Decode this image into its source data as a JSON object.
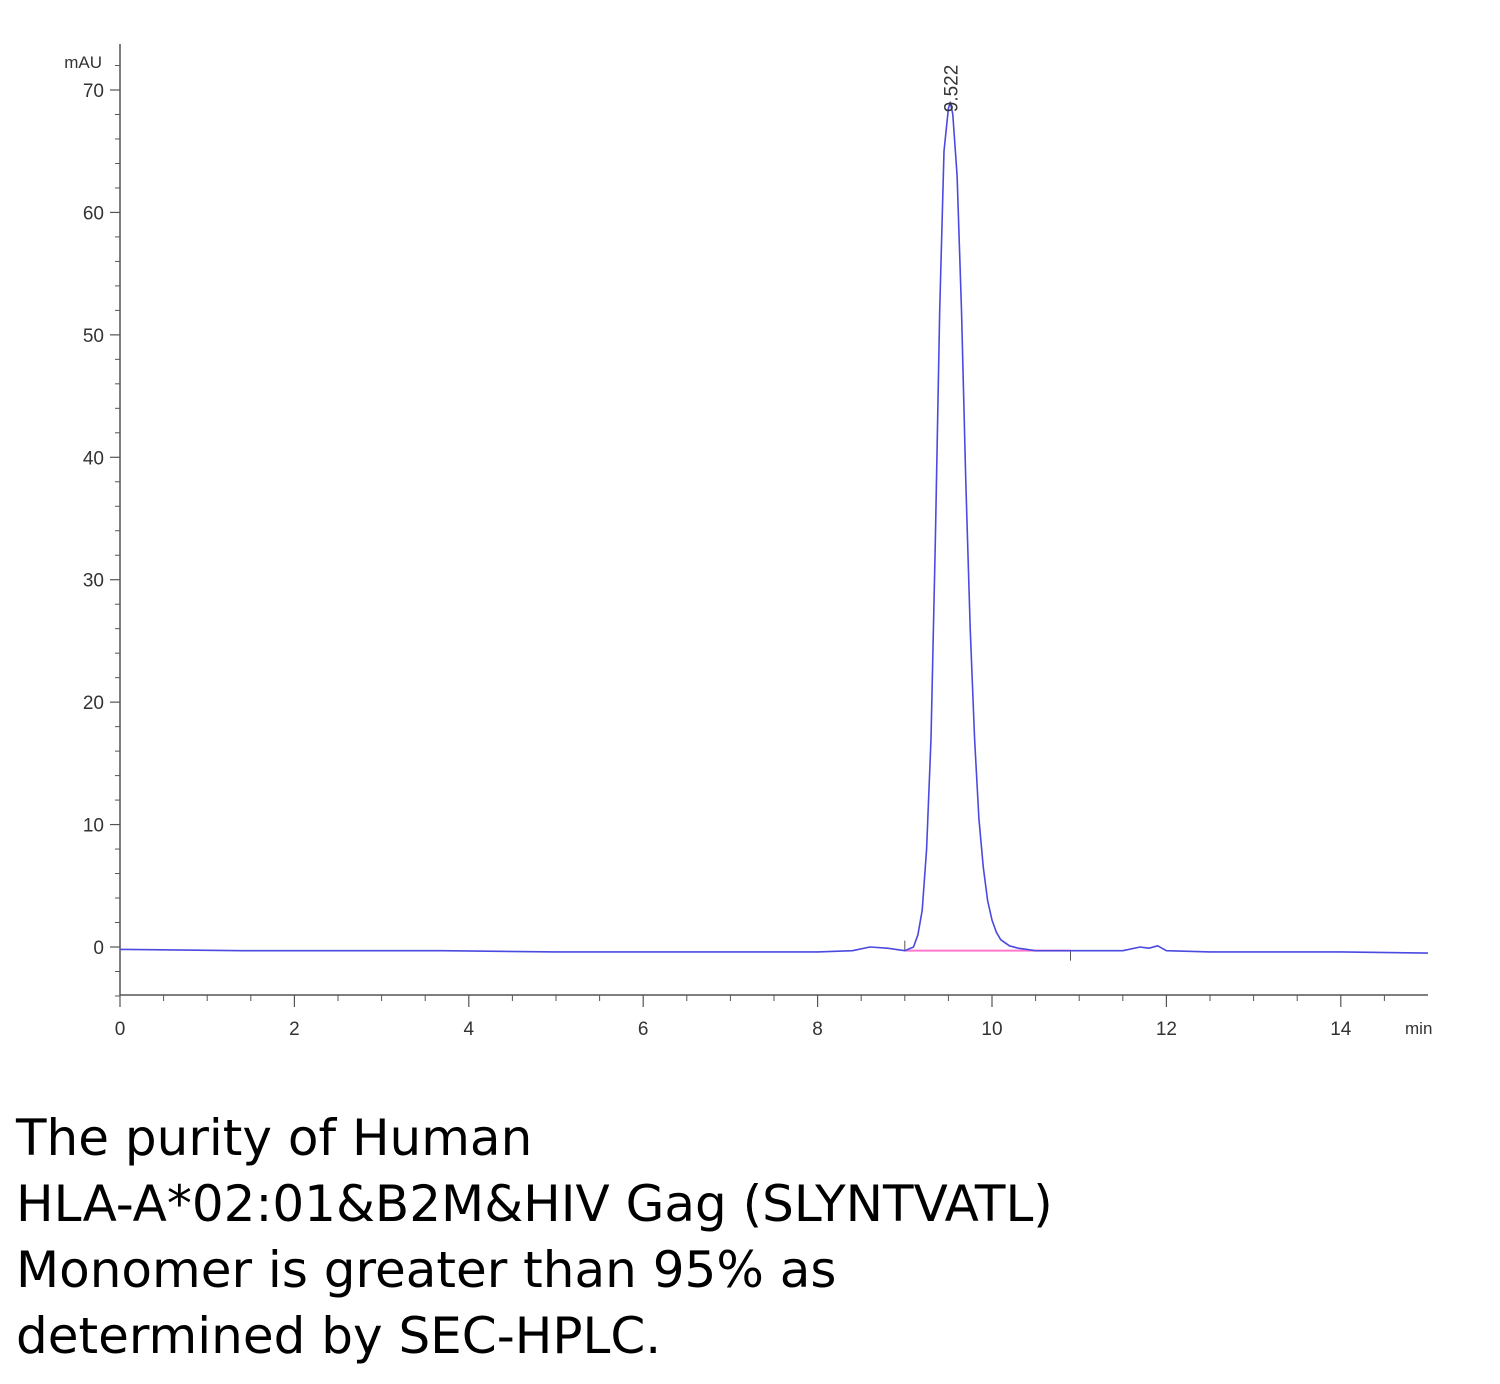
{
  "chart_data": {
    "type": "line",
    "xlabel": "min",
    "ylabel": "mAU",
    "xlim": [
      0,
      15
    ],
    "ylim": [
      -4,
      73
    ],
    "x_ticks": [
      0,
      2,
      4,
      6,
      8,
      10,
      12,
      14
    ],
    "x_tick_labels": [
      "0",
      "2",
      "4",
      "6",
      "8",
      "10",
      "12",
      "14"
    ],
    "y_ticks": [
      0,
      10,
      20,
      30,
      40,
      50,
      60,
      70
    ],
    "y_tick_labels": [
      "0",
      "10",
      "20",
      "30",
      "40",
      "50",
      "60",
      "70"
    ],
    "grid": false,
    "colors": {
      "trace": "#4a4ae0",
      "baseline": "#ff77cc",
      "axis": "#555555"
    },
    "peak_annotation": {
      "label": "9.522",
      "x": 9.522,
      "y": 69.0
    },
    "integration_baseline": {
      "x": [
        9.0,
        10.9
      ],
      "y": [
        -0.3,
        -0.3
      ]
    },
    "series": [
      {
        "x": [
          0,
          1.4,
          3.0,
          3.7,
          5.0,
          6.0,
          7.0,
          8.0,
          8.4,
          8.6,
          8.8,
          9.0,
          9.1,
          9.15,
          9.2,
          9.25,
          9.3,
          9.35,
          9.4,
          9.45,
          9.5,
          9.522,
          9.55,
          9.6,
          9.65,
          9.7,
          9.75,
          9.8,
          9.85,
          9.9,
          9.95,
          10.0,
          10.05,
          10.1,
          10.2,
          10.3,
          10.5,
          10.8,
          11.2,
          11.5,
          11.7,
          11.8,
          11.9,
          12.0,
          12.5,
          13.0,
          14.0,
          15.0
        ],
        "y": [
          -0.2,
          -0.3,
          -0.3,
          -0.3,
          -0.4,
          -0.4,
          -0.4,
          -0.4,
          -0.3,
          0.0,
          -0.1,
          -0.3,
          0.0,
          1.0,
          3.0,
          8.0,
          17.0,
          33.0,
          52.0,
          65.0,
          68.5,
          69.0,
          68.0,
          63.0,
          52.0,
          38.0,
          26.0,
          17.0,
          10.5,
          6.5,
          3.8,
          2.2,
          1.2,
          0.6,
          0.1,
          -0.1,
          -0.3,
          -0.3,
          -0.3,
          -0.3,
          0.0,
          -0.1,
          0.1,
          -0.3,
          -0.4,
          -0.4,
          -0.4,
          -0.5
        ]
      }
    ]
  },
  "caption": {
    "lines": [
      "The purity of Human",
      "HLA-A*02:01&B2M&HIV Gag (SLYNTVATL)",
      "Monomer is greater than 95% as",
      "determined by SEC-HPLC."
    ]
  }
}
